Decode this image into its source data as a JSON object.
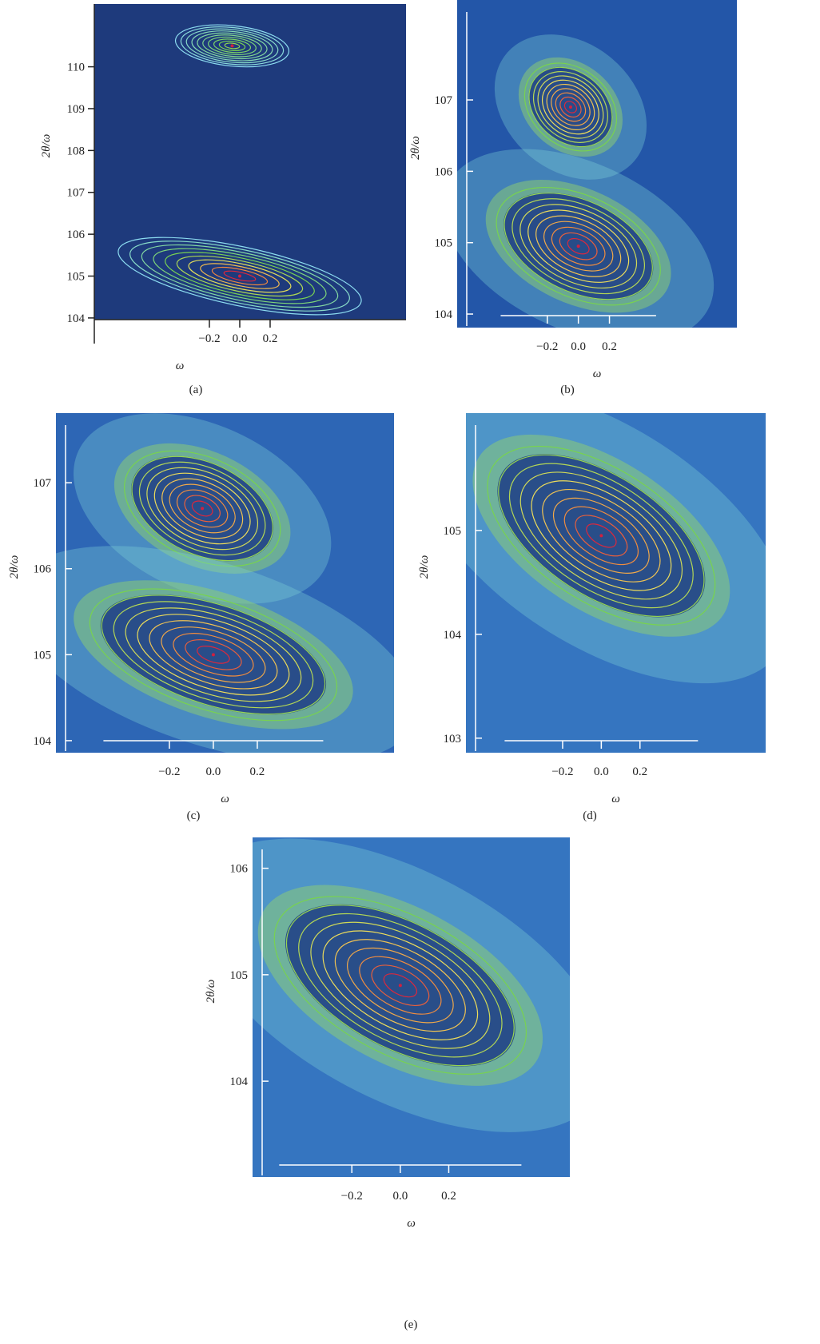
{
  "chart_data": [
    {
      "type": "contour",
      "panel": "(a)",
      "xlabel": "ω",
      "ylabel": "2θ/ω",
      "xlim": [
        -0.958,
        1.095
      ],
      "ylim": [
        103.96,
        111.5
      ],
      "xticks": [
        {
          "value": -0.2,
          "label": "−0.2"
        },
        {
          "value": 0,
          "label": "0.0"
        },
        0.2
      ],
      "yticks": [
        104,
        105,
        106,
        107,
        108,
        109,
        110
      ],
      "peaks": [
        {
          "x": -0.05,
          "y": 110.5
        },
        {
          "x": 0.0,
          "y": 105.0
        }
      ]
    },
    {
      "type": "contour",
      "panel": "(b)",
      "xlabel": "ω",
      "ylabel": "2θ/ω",
      "xlim": [
        -0.78,
        1.02
      ],
      "ylim": [
        103.81,
        108.4
      ],
      "xticks": [
        {
          "value": -0.2,
          "label": "−0.2"
        },
        {
          "value": 0,
          "label": "0.0"
        },
        0.2
      ],
      "yticks": [
        104,
        105,
        106,
        107
      ],
      "peaks": [
        {
          "x": -0.05,
          "y": 106.9
        },
        {
          "x": 0.0,
          "y": 104.95
        }
      ]
    },
    {
      "type": "contour",
      "panel": "(c)",
      "xlabel": "ω",
      "ylabel": "2θ/ω",
      "xlim": [
        -0.716,
        0.822
      ],
      "ylim": [
        103.86,
        107.81
      ],
      "xticks": [
        {
          "value": -0.2,
          "label": "−0.2"
        },
        {
          "value": 0,
          "label": "0.0"
        },
        0.2
      ],
      "yticks": [
        104,
        105,
        106,
        107
      ],
      "peaks": [
        {
          "x": -0.05,
          "y": 106.7
        },
        {
          "x": 0.0,
          "y": 105.0
        }
      ]
    },
    {
      "type": "contour",
      "panel": "(d)",
      "xlabel": "ω",
      "ylabel": "2θ/ω",
      "xlim": [
        -0.7,
        0.85
      ],
      "ylim": [
        102.86,
        106.13
      ],
      "xticks": [
        {
          "value": -0.2,
          "label": "−0.2"
        },
        {
          "value": 0,
          "label": "0.0"
        },
        0.2
      ],
      "yticks": [
        103,
        104,
        105
      ],
      "peaks": [
        {
          "x": 0.0,
          "y": 104.95
        }
      ]
    },
    {
      "type": "contour",
      "panel": "(e)",
      "xlabel": "ω",
      "ylabel": "2θ/ω",
      "xlim": [
        -0.61,
        0.7
      ],
      "ylim": [
        103.1,
        106.29
      ],
      "xticks": [
        {
          "value": -0.2,
          "label": "−0.2"
        },
        {
          "value": 0,
          "label": "0.0"
        },
        0.2
      ],
      "yticks": [
        104,
        105,
        106
      ],
      "peaks": [
        {
          "x": 0.0,
          "y": 104.9
        }
      ]
    }
  ]
}
